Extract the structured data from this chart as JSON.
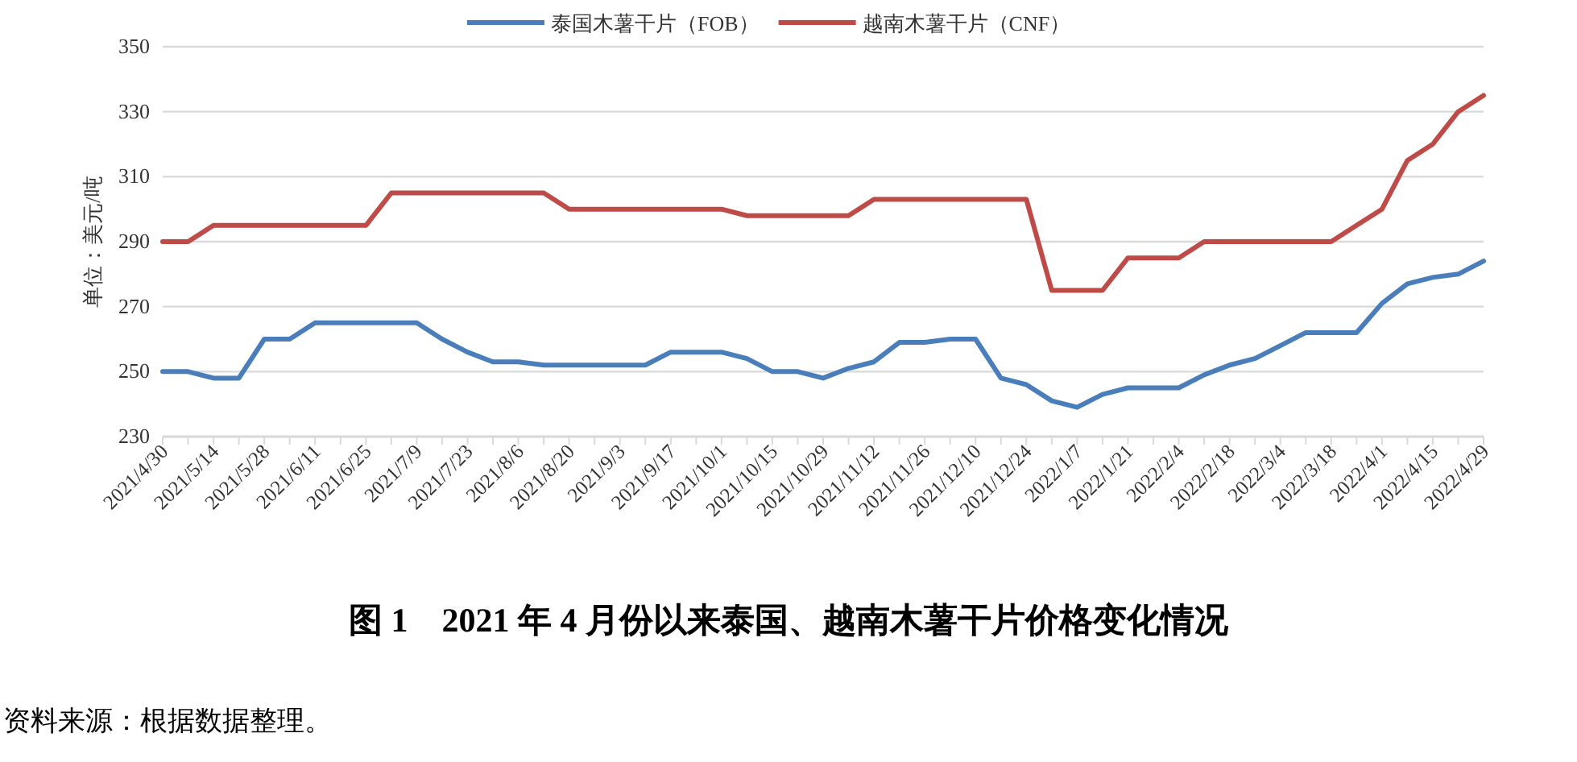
{
  "chart_data": {
    "type": "line",
    "title": "图 1　2021 年 4 月份以来泰国、越南木薯干片价格变化情况",
    "ylabel": "单位：美元/吨",
    "annotations": [
      "资料来源：根据数据整理。"
    ],
    "categories": [
      "2021/4/30",
      null,
      "2021/5/14",
      null,
      "2021/5/28",
      null,
      "2021/6/11",
      null,
      "2021/6/25",
      null,
      "2021/7/9",
      null,
      "2021/7/23",
      null,
      "2021/8/6",
      null,
      "2021/8/20",
      null,
      "2021/9/3",
      null,
      "2021/9/17",
      null,
      "2021/10/1",
      null,
      "2021/10/15",
      null,
      "2021/10/29",
      null,
      "2021/11/12",
      null,
      "2021/11/26",
      null,
      "2021/12/10",
      null,
      "2021/12/24",
      null,
      "2022/1/7",
      null,
      "2022/1/21",
      null,
      "2022/2/4",
      null,
      "2022/2/18",
      null,
      "2022/3/4",
      null,
      "2022/3/18",
      null,
      "2022/4/1",
      null,
      "2022/4/15",
      null,
      "2022/4/29"
    ],
    "series": [
      {
        "name": "泰国木薯干片（FOB）",
        "color": "#4a7ebb",
        "values": [
          250,
          250,
          248,
          248,
          260,
          260,
          265,
          265,
          265,
          265,
          265,
          260,
          256,
          253,
          253,
          252,
          252,
          252,
          252,
          252,
          256,
          256,
          256,
          254,
          250,
          250,
          248,
          251,
          253,
          259,
          259,
          260,
          260,
          248,
          246,
          241,
          239,
          243,
          245,
          245,
          245,
          249,
          252,
          254,
          258,
          262,
          262,
          262,
          271,
          277,
          279,
          280,
          284
        ]
      },
      {
        "name": "越南木薯干片（CNF）",
        "color": "#be4b48",
        "values": [
          290,
          290,
          295,
          295,
          295,
          295,
          295,
          295,
          295,
          305,
          305,
          305,
          305,
          305,
          305,
          305,
          300,
          300,
          300,
          300,
          300,
          300,
          300,
          298,
          298,
          298,
          298,
          298,
          303,
          303,
          303,
          303,
          303,
          303,
          303,
          275,
          275,
          275,
          285,
          285,
          285,
          290,
          290,
          290,
          290,
          290,
          290,
          295,
          300,
          315,
          320,
          330,
          335
        ]
      }
    ],
    "ylim": [
      230,
      350
    ],
    "yticks": [
      230,
      250,
      270,
      290,
      310,
      330,
      350
    ],
    "grid": "y",
    "legend": "top",
    "line_style": "solid",
    "marker": "none"
  }
}
